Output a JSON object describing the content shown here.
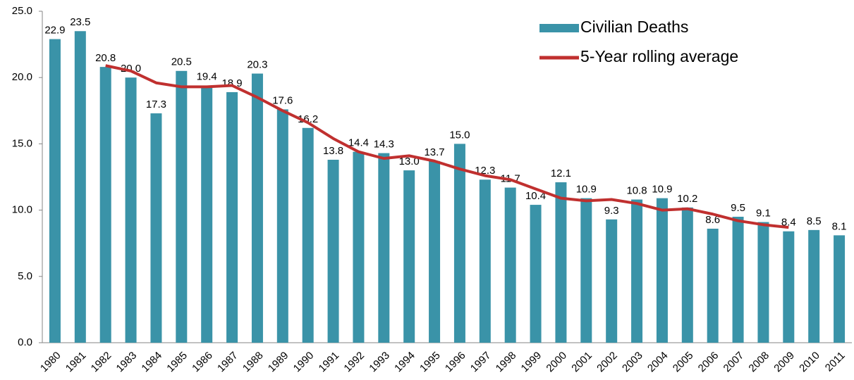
{
  "chart_data": {
    "type": "bar",
    "categories": [
      "1980",
      "1981",
      "1982",
      "1983",
      "1984",
      "1985",
      "1986",
      "1987",
      "1988",
      "1989",
      "1990",
      "1991",
      "1992",
      "1993",
      "1994",
      "1995",
      "1996",
      "1997",
      "1998",
      "1999",
      "2000",
      "2001",
      "2002",
      "2003",
      "2004",
      "2005",
      "2006",
      "2007",
      "2008",
      "2009",
      "2010",
      "2011"
    ],
    "series": [
      {
        "name": "Civilian Deaths",
        "type": "bar",
        "color": "#3a93a8",
        "values": [
          22.9,
          23.5,
          20.8,
          20.0,
          17.3,
          20.5,
          19.4,
          18.9,
          20.3,
          17.6,
          16.2,
          13.8,
          14.4,
          14.3,
          13.0,
          13.7,
          15.0,
          12.3,
          11.7,
          10.4,
          12.1,
          10.9,
          9.3,
          10.8,
          10.9,
          10.2,
          8.6,
          9.5,
          9.1,
          8.4,
          8.5,
          8.1
        ],
        "value_labels": [
          "22.9",
          "23.5",
          "20.8",
          "20.0",
          "17.3",
          "20.5",
          "19.4",
          "18.9",
          "20.3",
          "17.6",
          "16.2",
          "13.8",
          "14.4",
          "14.3",
          "13.0",
          "13.7",
          "15.0",
          "12.3",
          "11.7",
          "10.4",
          "12.1",
          "10.9",
          "9.3",
          "10.8",
          "10.9",
          "10.2",
          "8.6",
          "9.5",
          "9.1",
          "8.4",
          "8.5",
          "8.1"
        ]
      },
      {
        "name": "5-Year rolling average",
        "type": "line",
        "color": "#c0302f",
        "values": [
          null,
          null,
          20.9,
          20.5,
          19.6,
          19.3,
          19.3,
          19.4,
          18.5,
          17.5,
          16.6,
          15.4,
          14.4,
          13.9,
          14.1,
          13.7,
          13.1,
          12.6,
          12.3,
          11.6,
          10.9,
          10.7,
          10.8,
          10.5,
          10.0,
          10.1,
          9.7,
          9.2,
          8.9,
          8.7,
          null,
          null
        ]
      }
    ],
    "ylim": [
      0,
      25
    ],
    "yticks": [
      {
        "value": 0,
        "label": "0.0"
      },
      {
        "value": 5,
        "label": "5.0"
      },
      {
        "value": 10,
        "label": "10.0"
      },
      {
        "value": 15,
        "label": "15.0"
      },
      {
        "value": 20,
        "label": "20.0"
      },
      {
        "value": 25,
        "label": "25.0"
      }
    ],
    "grid": false,
    "legend": "upper right"
  }
}
